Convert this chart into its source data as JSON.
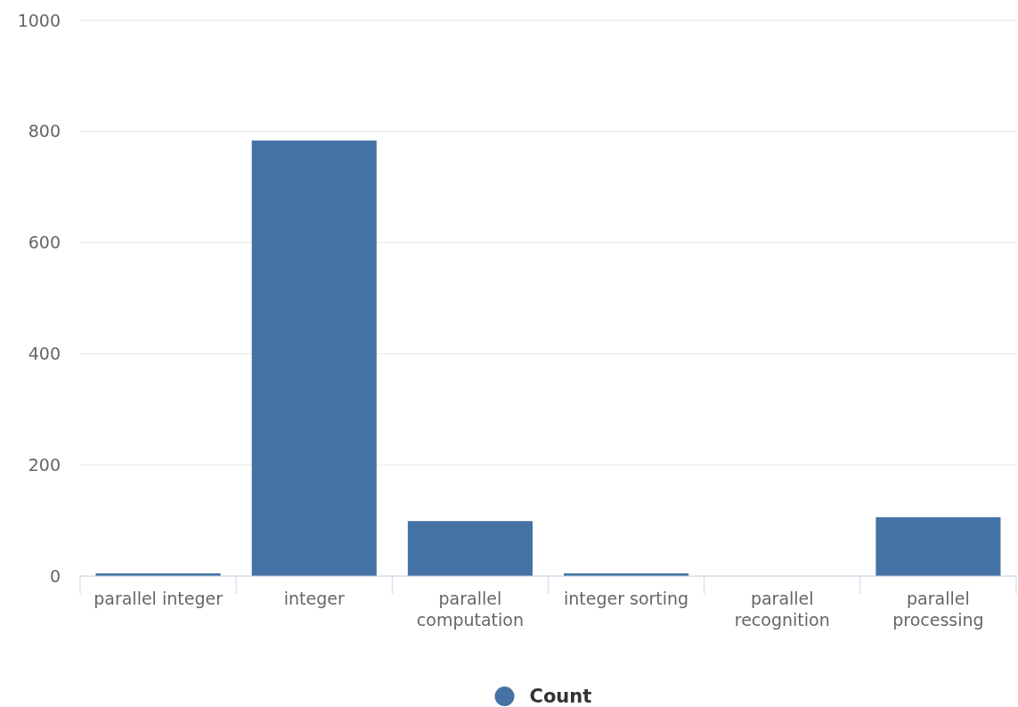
{
  "chart_data": {
    "type": "bar",
    "categories": [
      "parallel integer",
      "integer",
      "parallel computation",
      "integer sorting",
      "parallel recognition",
      "parallel processing"
    ],
    "series": [
      {
        "name": "Count",
        "color": "#4472a4",
        "values": [
          5,
          784,
          99,
          5,
          0,
          106
        ]
      }
    ],
    "ylim": [
      0,
      1000
    ],
    "yticks": [
      0,
      200,
      400,
      600,
      800,
      1000
    ],
    "grid": "y",
    "legend": "bottom"
  }
}
